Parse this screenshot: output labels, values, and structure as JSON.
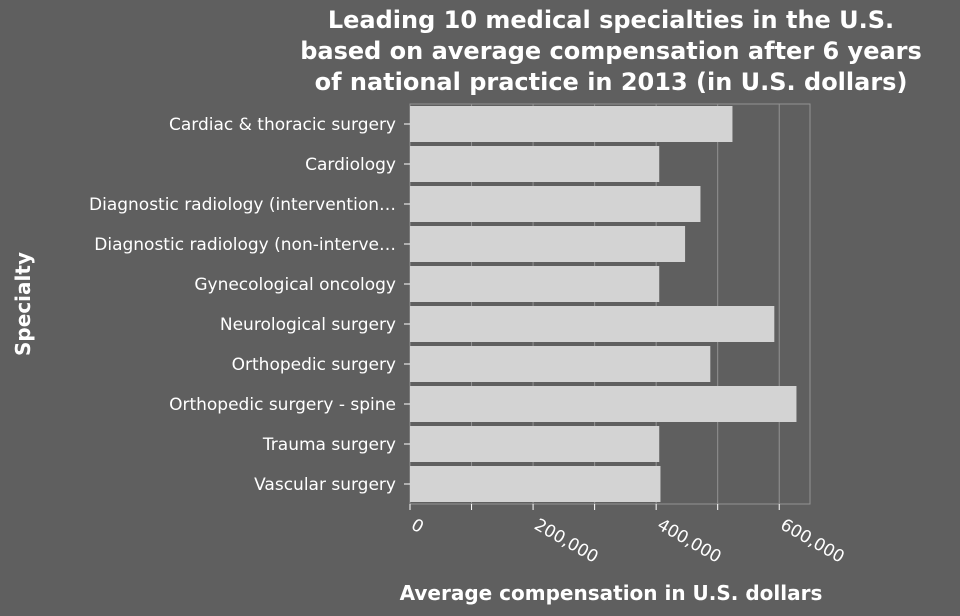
{
  "colors": {
    "background": "#5f5f5f",
    "bar": "#d3d3d3",
    "grid": "#939393",
    "text": "#ffffff"
  },
  "chart_data": {
    "type": "bar",
    "orientation": "horizontal",
    "title_lines": [
      "Leading 10 medical specialties in the U.S.",
      "based on average compensation after 6 years",
      "of national practice in 2013 (in U.S. dollars)"
    ],
    "xlabel": "Average compensation in U.S. dollars",
    "ylabel": "Specialty",
    "xlim": [
      0,
      650000
    ],
    "x_ticks": [
      0,
      200000,
      400000,
      600000
    ],
    "x_tick_labels": [
      "0",
      "200,000",
      "400,000",
      "600,000"
    ],
    "grid": "vertical",
    "categories": [
      "Cardiac & thoracic surgery",
      "Cardiology",
      "Diagnostic radiology (intervention…",
      "Diagnostic radiology (non-interve…",
      "Gynecological oncology",
      "Neurological surgery",
      "Orthopedic surgery",
      "Orthopedic surgery - spine",
      "Trauma surgery",
      "Vascular surgery"
    ],
    "values": [
      524000,
      405000,
      472000,
      447000,
      405000,
      592000,
      488000,
      628000,
      405000,
      407000
    ]
  }
}
